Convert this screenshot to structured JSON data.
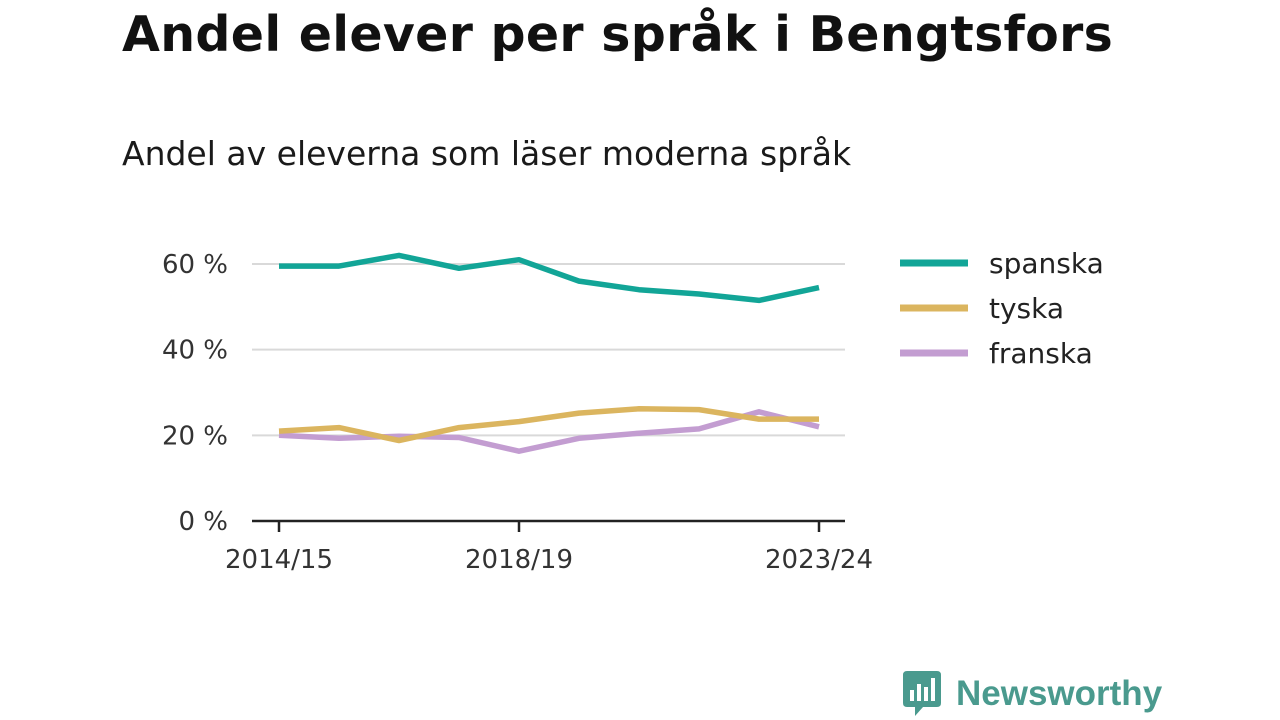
{
  "header": {
    "title": "Andel elever per språk i Bengtsfors",
    "subtitle": "Andel av eleverna som läser moderna språk"
  },
  "branding": {
    "name": "Newsworthy",
    "color": "#4a9a8e"
  },
  "chart_data": {
    "type": "line",
    "title": "Andel elever per språk i Bengtsfors",
    "subtitle": "Andel av eleverna som läser moderna språk",
    "xlabel": "",
    "ylabel": "",
    "x": [
      "2014/15",
      "2015/16",
      "2016/17",
      "2017/18",
      "2018/19",
      "2019/20",
      "2020/21",
      "2021/22",
      "2022/23",
      "2023/24"
    ],
    "x_tick_labels": [
      "2014/15",
      "2018/19",
      "2023/24"
    ],
    "y_ticks": [
      0,
      20,
      40,
      60
    ],
    "y_tick_labels": [
      "0 %",
      "20 %",
      "40 %",
      "60 %"
    ],
    "ylim": [
      0,
      60
    ],
    "grid": true,
    "legend_position": "right",
    "series": [
      {
        "name": "spanska",
        "color": "#12a597",
        "values": [
          59.5,
          59.5,
          62.0,
          59.0,
          61.0,
          56.0,
          54.0,
          53.0,
          51.5,
          54.5
        ]
      },
      {
        "name": "tyska",
        "color": "#dbb55f",
        "values": [
          21.0,
          21.8,
          18.8,
          21.8,
          23.2,
          25.2,
          26.2,
          26.0,
          23.8,
          23.8
        ]
      },
      {
        "name": "franska",
        "color": "#c39dd1",
        "values": [
          20.0,
          19.3,
          19.8,
          19.5,
          16.3,
          19.3,
          20.5,
          21.5,
          25.5,
          22.0
        ]
      }
    ]
  }
}
